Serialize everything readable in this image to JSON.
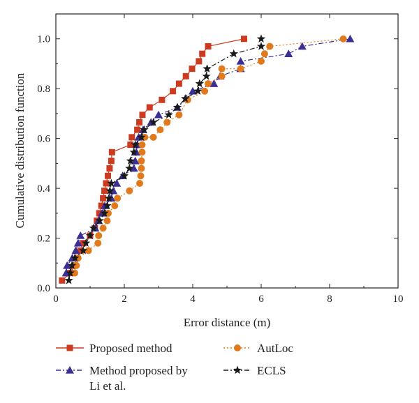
{
  "chart_data": {
    "type": "line",
    "xlabel": "Error distance (m)",
    "ylabel": "Cumulative distribution function",
    "xlim": [
      0,
      10
    ],
    "ylim": [
      0,
      1.1
    ],
    "xticks": [
      "0",
      "2",
      "4",
      "6",
      "8",
      "10"
    ],
    "yticks": [
      "0.0",
      "0.2",
      "0.4",
      "0.6",
      "0.8",
      "1.0"
    ],
    "grid": false,
    "legend_placement": "bottom",
    "series": [
      {
        "name": "Proposed method",
        "color": "#cc3a1f",
        "marker": "square",
        "line_style": "solid",
        "points": [
          [
            0.18,
            0.03
          ],
          [
            0.42,
            0.06
          ],
          [
            0.55,
            0.09
          ],
          [
            0.62,
            0.12
          ],
          [
            0.72,
            0.15
          ],
          [
            0.8,
            0.18
          ],
          [
            1.0,
            0.21
          ],
          [
            1.14,
            0.24
          ],
          [
            1.2,
            0.27
          ],
          [
            1.27,
            0.3
          ],
          [
            1.33,
            0.33
          ],
          [
            1.38,
            0.36
          ],
          [
            1.42,
            0.39
          ],
          [
            1.47,
            0.42
          ],
          [
            1.52,
            0.45
          ],
          [
            1.57,
            0.48
          ],
          [
            1.62,
            0.51
          ],
          [
            1.64,
            0.545
          ],
          [
            2.18,
            0.575
          ],
          [
            2.22,
            0.605
          ],
          [
            2.38,
            0.635
          ],
          [
            2.44,
            0.665
          ],
          [
            2.53,
            0.695
          ],
          [
            2.74,
            0.725
          ],
          [
            3.1,
            0.755
          ],
          [
            3.42,
            0.79
          ],
          [
            3.6,
            0.82
          ],
          [
            3.8,
            0.85
          ],
          [
            3.98,
            0.88
          ],
          [
            4.18,
            0.91
          ],
          [
            4.28,
            0.94
          ],
          [
            4.45,
            0.97
          ],
          [
            5.5,
            1.0
          ]
        ]
      },
      {
        "name": "Method proposed by Li et al.",
        "color": "#3b2f96",
        "marker": "triangle",
        "line_style": "dashdot",
        "points": [
          [
            0.3,
            0.06
          ],
          [
            0.33,
            0.09
          ],
          [
            0.48,
            0.12
          ],
          [
            0.58,
            0.15
          ],
          [
            0.65,
            0.18
          ],
          [
            0.72,
            0.21
          ],
          [
            1.15,
            0.24
          ],
          [
            1.25,
            0.27
          ],
          [
            1.35,
            0.3
          ],
          [
            1.43,
            0.33
          ],
          [
            1.62,
            0.36
          ],
          [
            1.68,
            0.39
          ],
          [
            1.78,
            0.42
          ],
          [
            1.95,
            0.45
          ],
          [
            2.28,
            0.48
          ],
          [
            2.32,
            0.51
          ],
          [
            2.35,
            0.545
          ],
          [
            2.38,
            0.575
          ],
          [
            2.42,
            0.605
          ],
          [
            2.55,
            0.635
          ],
          [
            2.78,
            0.665
          ],
          [
            3.0,
            0.695
          ],
          [
            3.55,
            0.725
          ],
          [
            3.82,
            0.76
          ],
          [
            4.0,
            0.79
          ],
          [
            4.62,
            0.82
          ],
          [
            4.8,
            0.85
          ],
          [
            5.4,
            0.88
          ],
          [
            5.4,
            0.91
          ],
          [
            6.8,
            0.94
          ],
          [
            7.2,
            0.97
          ],
          [
            8.6,
            1.0
          ]
        ]
      },
      {
        "name": "AutLoc",
        "color": "#e17a1c",
        "marker": "circle",
        "line_style": "dotted",
        "points": [
          [
            0.55,
            0.06
          ],
          [
            0.6,
            0.09
          ],
          [
            0.65,
            0.12
          ],
          [
            0.95,
            0.15
          ],
          [
            1.23,
            0.18
          ],
          [
            1.25,
            0.21
          ],
          [
            1.38,
            0.24
          ],
          [
            1.5,
            0.27
          ],
          [
            1.53,
            0.3
          ],
          [
            1.72,
            0.33
          ],
          [
            1.8,
            0.36
          ],
          [
            2.15,
            0.39
          ],
          [
            2.45,
            0.42
          ],
          [
            2.48,
            0.45
          ],
          [
            2.5,
            0.48
          ],
          [
            2.5,
            0.51
          ],
          [
            2.52,
            0.545
          ],
          [
            2.52,
            0.575
          ],
          [
            2.6,
            0.605
          ],
          [
            2.85,
            0.605
          ],
          [
            3.05,
            0.635
          ],
          [
            3.25,
            0.665
          ],
          [
            3.6,
            0.695
          ],
          [
            3.85,
            0.755
          ],
          [
            4.35,
            0.79
          ],
          [
            4.45,
            0.82
          ],
          [
            4.85,
            0.85
          ],
          [
            4.85,
            0.88
          ],
          [
            5.4,
            0.88
          ],
          [
            6.0,
            0.91
          ],
          [
            6.1,
            0.94
          ],
          [
            6.25,
            0.97
          ],
          [
            8.4,
            1.0
          ]
        ]
      },
      {
        "name": "ECLS",
        "color": "#1a1a1a",
        "marker": "star",
        "line_style": "dashdot",
        "points": [
          [
            0.38,
            0.03
          ],
          [
            0.42,
            0.06
          ],
          [
            0.47,
            0.09
          ],
          [
            0.56,
            0.12
          ],
          [
            0.8,
            0.15
          ],
          [
            0.88,
            0.18
          ],
          [
            1.0,
            0.21
          ],
          [
            1.1,
            0.24
          ],
          [
            1.28,
            0.27
          ],
          [
            1.42,
            0.3
          ],
          [
            1.5,
            0.33
          ],
          [
            1.55,
            0.36
          ],
          [
            1.58,
            0.39
          ],
          [
            1.62,
            0.42
          ],
          [
            2.0,
            0.45
          ],
          [
            2.15,
            0.48
          ],
          [
            2.18,
            0.51
          ],
          [
            2.28,
            0.545
          ],
          [
            2.32,
            0.575
          ],
          [
            2.5,
            0.605
          ],
          [
            2.58,
            0.635
          ],
          [
            2.85,
            0.665
          ],
          [
            3.3,
            0.695
          ],
          [
            3.55,
            0.725
          ],
          [
            3.78,
            0.76
          ],
          [
            4.15,
            0.79
          ],
          [
            4.2,
            0.82
          ],
          [
            4.4,
            0.85
          ],
          [
            4.42,
            0.88
          ],
          [
            5.2,
            0.94
          ],
          [
            6.0,
            0.97
          ],
          [
            6.0,
            1.0
          ]
        ]
      }
    ]
  }
}
